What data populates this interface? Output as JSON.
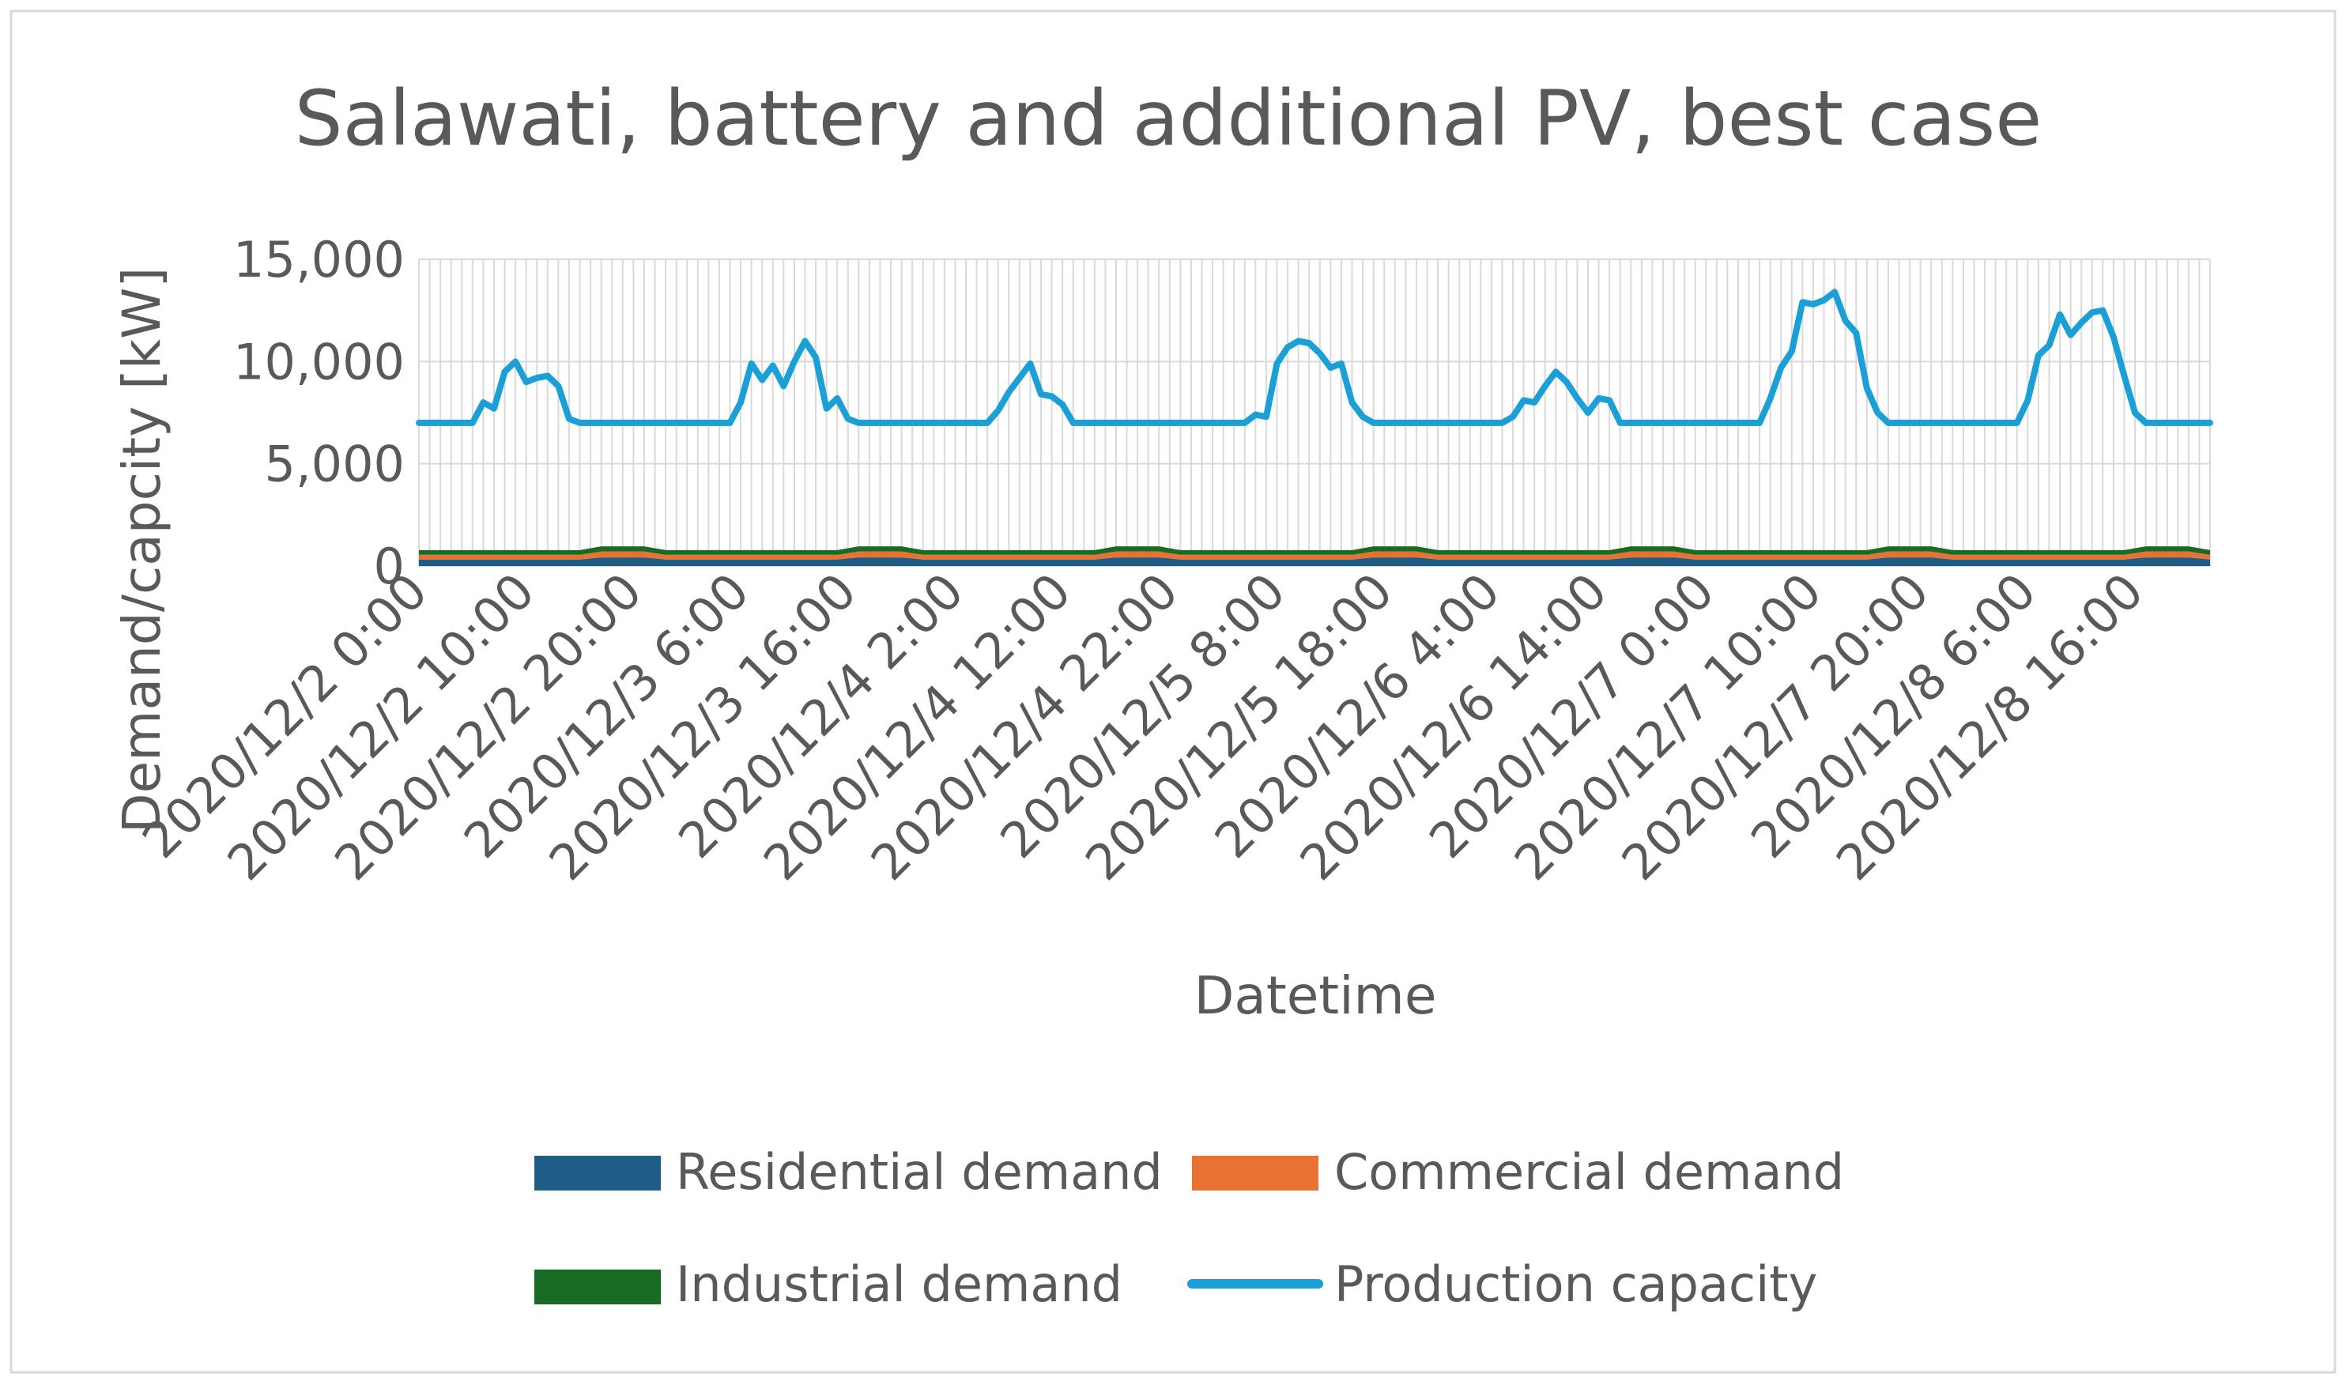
{
  "chart_data": {
    "type": "area+line",
    "title": "Salawati, battery and additional PV, best case",
    "xlabel": "Datetime",
    "ylabel": "Demand/capcity [kW]",
    "ylim": [
      0,
      15000
    ],
    "y_ticks": [
      0,
      5000,
      10000,
      15000
    ],
    "y_tick_labels": [
      "0",
      "5,000",
      "10,000",
      "15,000"
    ],
    "x_tick_labels": [
      "2020/12/2 0:00",
      "2020/12/2 10:00",
      "2020/12/2 20:00",
      "2020/12/3 6:00",
      "2020/12/3 16:00",
      "2020/12/4 2:00",
      "2020/12/4 12:00",
      "2020/12/4 22:00",
      "2020/12/5 8:00",
      "2020/12/5 18:00",
      "2020/12/6 4:00",
      "2020/12/6 14:00",
      "2020/12/7 0:00",
      "2020/12/7 10:00",
      "2020/12/7 20:00",
      "2020/12/8 6:00",
      "2020/12/8 16:00"
    ],
    "x_start": "2020/12/2 0:00",
    "x_step_hours": 1,
    "x_tick_every_hours": 10,
    "grid": "vertical lines every hour, horizontal at y ticks",
    "legend_position": "bottom",
    "legend": [
      {
        "name": "Residential demand",
        "color": "#1F5C86",
        "kind": "area"
      },
      {
        "name": "Commercial demand",
        "color": "#E97132",
        "kind": "area"
      },
      {
        "name": "Industrial demand",
        "color": "#196B24",
        "kind": "area"
      },
      {
        "name": "Production capacity",
        "color": "#1AA0D6",
        "kind": "line"
      }
    ],
    "series": [
      {
        "name": "Residential demand",
        "color": "#1F5C86",
        "baseline": 320,
        "evening_peak": 420,
        "note": "approx. 300-450 kW, hourly, stacked"
      },
      {
        "name": "Commercial demand",
        "color": "#E97132",
        "baseline": 230,
        "evening_peak": 290,
        "note": "approx. 200-300 kW, hourly, stacked"
      },
      {
        "name": "Industrial demand",
        "color": "#196B24",
        "baseline": 230,
        "evening_peak": 250,
        "note": "approx. 200-250 kW, hourly, stacked"
      },
      {
        "name": "Production capacity",
        "color": "#1AA0D6",
        "baseline": 7000,
        "values_anchor_points": [
          [
            0,
            7000
          ],
          [
            5,
            7000
          ],
          [
            6,
            8000
          ],
          [
            7,
            7700
          ],
          [
            8,
            9500
          ],
          [
            9,
            10000
          ],
          [
            10,
            9000
          ],
          [
            11,
            9200
          ],
          [
            12,
            9300
          ],
          [
            13,
            8800
          ],
          [
            14,
            7200
          ],
          [
            15,
            7000
          ],
          [
            23,
            7000
          ],
          [
            29,
            7000
          ],
          [
            30,
            8000
          ],
          [
            31,
            9900
          ],
          [
            32,
            9100
          ],
          [
            33,
            9800
          ],
          [
            34,
            8800
          ],
          [
            35,
            10000
          ],
          [
            36,
            11000
          ],
          [
            37,
            10200
          ],
          [
            38,
            7700
          ],
          [
            39,
            8200
          ],
          [
            40,
            7200
          ],
          [
            41,
            7000
          ],
          [
            47,
            7000
          ],
          [
            53,
            7000
          ],
          [
            54,
            7600
          ],
          [
            55,
            8500
          ],
          [
            56,
            9200
          ],
          [
            57,
            9900
          ],
          [
            58,
            8400
          ],
          [
            59,
            8300
          ],
          [
            60,
            7900
          ],
          [
            61,
            7000
          ],
          [
            71,
            7000
          ],
          [
            77,
            7000
          ],
          [
            78,
            7400
          ],
          [
            79,
            7300
          ],
          [
            80,
            9900
          ],
          [
            81,
            10700
          ],
          [
            82,
            11000
          ],
          [
            83,
            10900
          ],
          [
            84,
            10400
          ],
          [
            85,
            9700
          ],
          [
            86,
            9900
          ],
          [
            87,
            8000
          ],
          [
            88,
            7300
          ],
          [
            89,
            7000
          ],
          [
            95,
            7000
          ],
          [
            101,
            7000
          ],
          [
            102,
            7300
          ],
          [
            103,
            8100
          ],
          [
            104,
            8000
          ],
          [
            105,
            8800
          ],
          [
            106,
            9500
          ],
          [
            107,
            9000
          ],
          [
            108,
            8200
          ],
          [
            109,
            7500
          ],
          [
            110,
            8200
          ],
          [
            111,
            8100
          ],
          [
            112,
            7000
          ],
          [
            119,
            7000
          ],
          [
            125,
            7000
          ],
          [
            126,
            8200
          ],
          [
            127,
            9700
          ],
          [
            128,
            10500
          ],
          [
            129,
            12900
          ],
          [
            130,
            12800
          ],
          [
            131,
            13000
          ],
          [
            132,
            13400
          ],
          [
            133,
            12000
          ],
          [
            134,
            11400
          ],
          [
            135,
            8700
          ],
          [
            136,
            7500
          ],
          [
            137,
            7000
          ],
          [
            143,
            7000
          ],
          [
            149,
            7000
          ],
          [
            150,
            8100
          ],
          [
            151,
            10300
          ],
          [
            152,
            10800
          ],
          [
            153,
            12300
          ],
          [
            154,
            11300
          ],
          [
            155,
            11900
          ],
          [
            156,
            12400
          ],
          [
            157,
            12500
          ],
          [
            158,
            11200
          ],
          [
            159,
            9300
          ],
          [
            160,
            7500
          ],
          [
            161,
            7000
          ],
          [
            167,
            7000
          ]
        ]
      }
    ]
  }
}
